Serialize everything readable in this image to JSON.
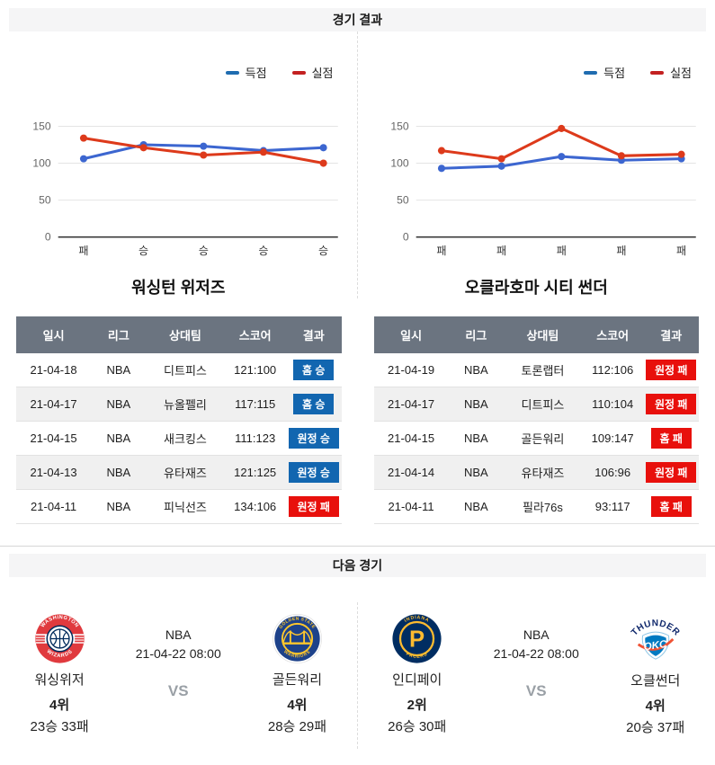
{
  "page": {
    "results_title": "경기 결과",
    "next_title": "다음 경기"
  },
  "results_table_headers": [
    "일시",
    "리그",
    "상대팀",
    "스코어",
    "결과"
  ],
  "teams": [
    {
      "name": "워싱턴 위저즈",
      "rows": [
        {
          "date": "21-04-18",
          "league": "NBA",
          "opponent": "디트피스",
          "score": "121:100",
          "result": "홈 승",
          "result_type": "win"
        },
        {
          "date": "21-04-17",
          "league": "NBA",
          "opponent": "뉴올펠리",
          "score": "117:115",
          "result": "홈 승",
          "result_type": "win"
        },
        {
          "date": "21-04-15",
          "league": "NBA",
          "opponent": "새크킹스",
          "score": "111:123",
          "result": "원정 승",
          "result_type": "win"
        },
        {
          "date": "21-04-13",
          "league": "NBA",
          "opponent": "유타재즈",
          "score": "121:125",
          "result": "원정 승",
          "result_type": "win"
        },
        {
          "date": "21-04-11",
          "league": "NBA",
          "opponent": "피닉선즈",
          "score": "134:106",
          "result": "원정 패",
          "result_type": "loss"
        }
      ]
    },
    {
      "name": "오클라호마 시티 썬더",
      "rows": [
        {
          "date": "21-04-19",
          "league": "NBA",
          "opponent": "토론랩터",
          "score": "112:106",
          "result": "원정 패",
          "result_type": "loss"
        },
        {
          "date": "21-04-17",
          "league": "NBA",
          "opponent": "디트피스",
          "score": "110:104",
          "result": "원정 패",
          "result_type": "loss"
        },
        {
          "date": "21-04-15",
          "league": "NBA",
          "opponent": "골든워리",
          "score": "109:147",
          "result": "홈 패",
          "result_type": "loss"
        },
        {
          "date": "21-04-14",
          "league": "NBA",
          "opponent": "유타재즈",
          "score": "106:96",
          "result": "원정 패",
          "result_type": "loss"
        },
        {
          "date": "21-04-11",
          "league": "NBA",
          "opponent": "필라76s",
          "score": "93:117",
          "result": "홈 패",
          "result_type": "loss"
        }
      ]
    }
  ],
  "chart_data": [
    {
      "type": "line",
      "categories": [
        "패",
        "승",
        "승",
        "승",
        "승"
      ],
      "series": [
        {
          "name": "득점",
          "color": "#3c66d0",
          "values": [
            106,
            125,
            123,
            117,
            121
          ]
        },
        {
          "name": "실점",
          "color": "#dd3a1b",
          "values": [
            134,
            121,
            111,
            115,
            100
          ]
        }
      ],
      "ylim": [
        0,
        150
      ],
      "yticks": [
        0,
        50,
        100,
        150
      ],
      "legend_position": "top-right",
      "grid": true
    },
    {
      "type": "line",
      "categories": [
        "패",
        "패",
        "패",
        "패",
        "패"
      ],
      "series": [
        {
          "name": "득점",
          "color": "#3c66d0",
          "values": [
            93,
            96,
            109,
            104,
            106
          ]
        },
        {
          "name": "실점",
          "color": "#dd3a1b",
          "values": [
            117,
            106,
            147,
            110,
            112
          ]
        }
      ],
      "ylim": [
        0,
        150
      ],
      "yticks": [
        0,
        50,
        100,
        150
      ],
      "legend_position": "top-right",
      "grid": true
    }
  ],
  "next_games": [
    {
      "league": "NBA",
      "datetime": "21-04-22 08:00",
      "vs_label": "VS",
      "home": {
        "name": "워싱위저",
        "rank": "4위",
        "record": "23승 33패"
      },
      "away": {
        "name": "골든워리",
        "rank": "4위",
        "record": "28승 29패"
      }
    },
    {
      "league": "NBA",
      "datetime": "21-04-22 08:00",
      "vs_label": "VS",
      "home": {
        "name": "인디페이",
        "rank": "2위",
        "record": "26승 30패"
      },
      "away": {
        "name": "오클썬더",
        "rank": "4위",
        "record": "20승 37패"
      }
    }
  ],
  "colors": {
    "win_badge": "#1266b0",
    "loss_badge": "#e8100c",
    "scored_line": "#3c66d0",
    "conceded_line": "#dd3a1b",
    "legend_scored": "#1f6cb0",
    "legend_conceded": "#c32121",
    "table_header_bg": "#6b7480"
  }
}
